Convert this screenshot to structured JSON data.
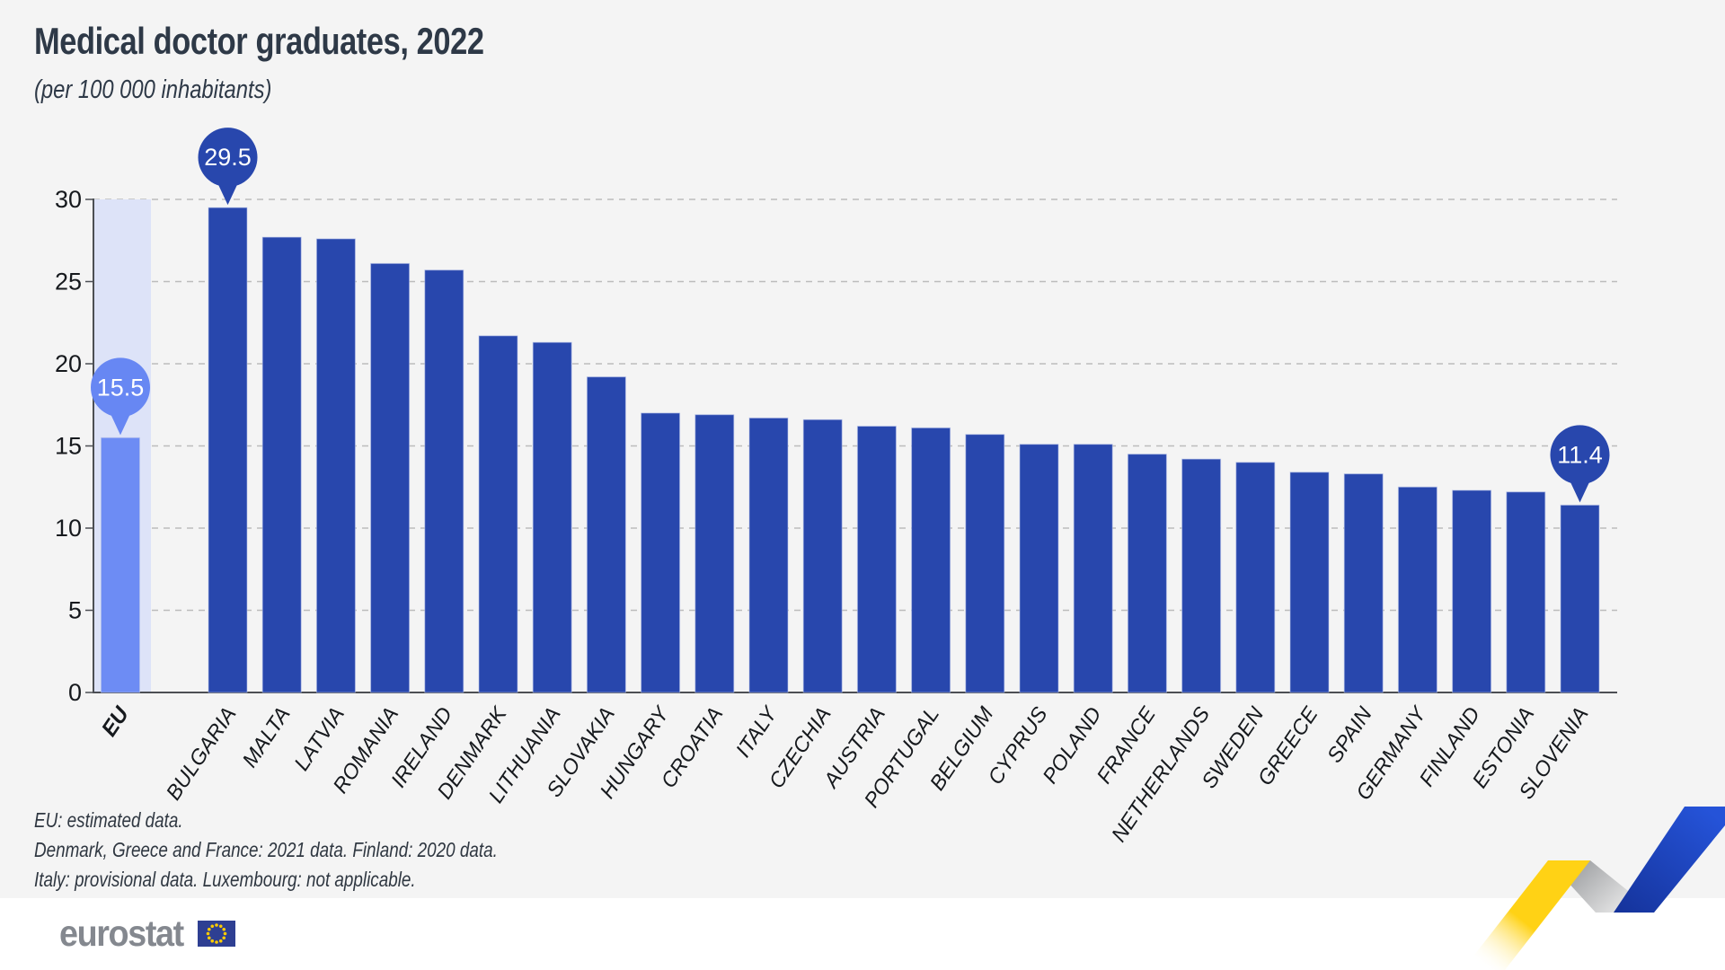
{
  "header": {
    "title": "Medical doctor graduates, 2022",
    "subtitle": "(per 100 000 inhabitants)"
  },
  "footnotes": [
    "EU: estimated data.",
    "Denmark, Greece and France: 2021 data. Finland: 2020 data.",
    "Italy: provisional data. Luxembourg: not applicable."
  ],
  "logo": {
    "text": "eurostat"
  },
  "colors": {
    "background_panel": "#f4f4f4",
    "background_footer": "#ffffff",
    "bar_dark_blue": "#2847ad",
    "bar_eu_blue": "#6d8cf4",
    "eu_highlight_band": "#dde3f8",
    "callout_dark": "#2847ad",
    "callout_light": "#6787f3",
    "callout_text": "#ffffff",
    "gridline": "#bcbcbc",
    "axis": "#4c4f54",
    "text_dark": "#16191d",
    "title_text": "#2e3947",
    "logo_gray": "#84888f",
    "flag_blue": "#2e3f92",
    "flag_star_yellow": "#ffcc00",
    "ribbon_yellow": "#ffd215",
    "ribbon_gray": "#97999c",
    "ribbon_blue": "#2553d8"
  },
  "chart_data": {
    "type": "bar",
    "title": "Medical doctor graduates, 2022",
    "subtitle": "(per 100 000 inhabitants)",
    "xlabel": "",
    "ylabel": "",
    "ylim": [
      0,
      30
    ],
    "yticks": [
      0,
      5,
      10,
      15,
      20,
      25,
      30
    ],
    "grid": "horizontal-dashed",
    "legend": "none",
    "categories": [
      "EU",
      "BULGARIA",
      "MALTA",
      "LATVIA",
      "ROMANIA",
      "IRELAND",
      "DENMARK",
      "LITHUANIA",
      "SLOVAKIA",
      "HUNGARY",
      "CROATIA",
      "ITALY",
      "CZECHIA",
      "AUSTRIA",
      "PORTUGAL",
      "BELGIUM",
      "CYPRUS",
      "POLAND",
      "FRANCE",
      "NETHERLANDS",
      "SWEDEN",
      "GREECE",
      "SPAIN",
      "GERMANY",
      "FINLAND",
      "ESTONIA",
      "SLOVENIA"
    ],
    "values": [
      15.5,
      29.5,
      27.7,
      27.6,
      26.1,
      25.7,
      21.7,
      21.3,
      19.2,
      17.0,
      16.9,
      16.7,
      16.6,
      16.2,
      16.1,
      15.7,
      15.1,
      15.1,
      14.5,
      14.2,
      14.0,
      13.4,
      13.3,
      12.5,
      12.3,
      12.2,
      11.4
    ],
    "highlight_category": "EU",
    "callouts": [
      {
        "category": "EU",
        "label": "15.5",
        "variant": "light"
      },
      {
        "category": "BULGARIA",
        "label": "29.5",
        "variant": "dark"
      },
      {
        "category": "SLOVENIA",
        "label": "11.4",
        "variant": "dark"
      }
    ]
  }
}
